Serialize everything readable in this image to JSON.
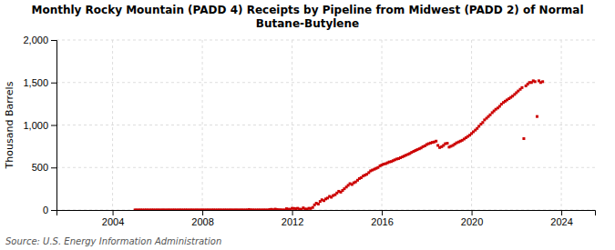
{
  "chart_data": {
    "type": "scatter",
    "title": "Monthly Rocky Mountain (PADD 4) Receipts by Pipeline from Midwest (PADD 2) of Normal\nButane-Butylene",
    "ylabel": "Thousand Barrels",
    "source": "Source: U.S. Energy Information Administration",
    "color": "#cc0000",
    "marker": "square",
    "grid": true,
    "xlim": [
      2001.5,
      2025.5
    ],
    "xticks": [
      2004,
      2008,
      2012,
      2016,
      2020,
      2024
    ],
    "ylim": [
      0,
      2000
    ],
    "yticks": [
      0,
      500,
      {
        "value": 1000,
        "label": "1,000"
      },
      {
        "value": 1500,
        "label": "1,500"
      },
      {
        "value": 2000,
        "label": "2,000"
      }
    ],
    "x": [
      2005.0,
      2005.08,
      2005.17,
      2005.25,
      2005.33,
      2005.42,
      2005.5,
      2005.58,
      2005.67,
      2005.75,
      2005.83,
      2005.92,
      2006.0,
      2006.08,
      2006.17,
      2006.25,
      2006.33,
      2006.42,
      2006.5,
      2006.58,
      2006.67,
      2006.75,
      2006.83,
      2006.92,
      2007.0,
      2007.08,
      2007.17,
      2007.25,
      2007.33,
      2007.42,
      2007.5,
      2007.58,
      2007.67,
      2007.75,
      2007.83,
      2007.92,
      2008.0,
      2008.08,
      2008.17,
      2008.25,
      2008.33,
      2008.42,
      2008.5,
      2008.58,
      2008.67,
      2008.75,
      2008.83,
      2008.92,
      2009.0,
      2009.08,
      2009.17,
      2009.25,
      2009.33,
      2009.42,
      2009.5,
      2009.58,
      2009.67,
      2009.75,
      2009.83,
      2009.92,
      2010.0,
      2010.08,
      2010.17,
      2010.25,
      2010.33,
      2010.42,
      2010.5,
      2010.58,
      2010.67,
      2010.75,
      2010.83,
      2010.92,
      2011.0,
      2011.08,
      2011.17,
      2011.25,
      2011.33,
      2011.42,
      2011.5,
      2011.58,
      2011.67,
      2011.75,
      2011.83,
      2011.92,
      2012.0,
      2012.08,
      2012.17,
      2012.25,
      2012.33,
      2012.42,
      2012.5,
      2012.58,
      2012.67,
      2012.75,
      2012.83,
      2012.92,
      2013.0,
      2013.08,
      2013.17,
      2013.25,
      2013.33,
      2013.42,
      2013.5,
      2013.58,
      2013.67,
      2013.75,
      2013.83,
      2013.92,
      2014.0,
      2014.08,
      2014.17,
      2014.25,
      2014.33,
      2014.42,
      2014.5,
      2014.58,
      2014.67,
      2014.75,
      2014.83,
      2014.92,
      2015.0,
      2015.08,
      2015.17,
      2015.25,
      2015.33,
      2015.42,
      2015.5,
      2015.58,
      2015.67,
      2015.75,
      2015.83,
      2015.92,
      2016.0,
      2016.08,
      2016.17,
      2016.25,
      2016.33,
      2016.42,
      2016.5,
      2016.58,
      2016.67,
      2016.75,
      2016.83,
      2016.92,
      2017.0,
      2017.08,
      2017.17,
      2017.25,
      2017.33,
      2017.42,
      2017.5,
      2017.58,
      2017.67,
      2017.75,
      2017.83,
      2017.92,
      2018.0,
      2018.08,
      2018.17,
      2018.25,
      2018.33,
      2018.42,
      2018.5,
      2018.58,
      2018.67,
      2018.75,
      2018.83,
      2018.92,
      2019.0,
      2019.08,
      2019.17,
      2019.25,
      2019.33,
      2019.42,
      2019.5,
      2019.58,
      2019.67,
      2019.75,
      2019.83,
      2019.92,
      2020.0,
      2020.08,
      2020.17,
      2020.25,
      2020.33,
      2020.42,
      2020.5,
      2020.58,
      2020.67,
      2020.75,
      2020.83,
      2020.92,
      2021.0,
      2021.08,
      2021.17,
      2021.25,
      2021.33,
      2021.42,
      2021.5,
      2021.58,
      2021.67,
      2021.75,
      2021.83,
      2021.92,
      2022.0,
      2022.08,
      2022.17,
      2022.25,
      2022.33,
      2022.42,
      2022.5,
      2022.58,
      2022.67,
      2022.75,
      2022.83,
      2022.92,
      2023.0,
      2023.08,
      2023.17
    ],
    "values": [
      1,
      1,
      1,
      1,
      1,
      1,
      1,
      1,
      1,
      1,
      1,
      1,
      1,
      1,
      1,
      1,
      1,
      1,
      1,
      1,
      1,
      1,
      1,
      1,
      1,
      1,
      1,
      1,
      1,
      1,
      1,
      1,
      1,
      1,
      1,
      1,
      1,
      1,
      1,
      1,
      1,
      1,
      1,
      1,
      1,
      1,
      1,
      1,
      1,
      1,
      1,
      1,
      1,
      1,
      1,
      1,
      1,
      1,
      1,
      1,
      1,
      5,
      2,
      1,
      1,
      1,
      1,
      1,
      1,
      1,
      1,
      1,
      5,
      8,
      3,
      10,
      5,
      3,
      2,
      1,
      1,
      15,
      10,
      8,
      20,
      18,
      15,
      20,
      10,
      8,
      25,
      12,
      10,
      20,
      18,
      30,
      60,
      80,
      70,
      100,
      120,
      110,
      130,
      140,
      160,
      150,
      170,
      180,
      200,
      220,
      210,
      230,
      250,
      270,
      290,
      310,
      300,
      320,
      330,
      350,
      370,
      380,
      400,
      410,
      420,
      440,
      460,
      470,
      480,
      490,
      500,
      520,
      530,
      540,
      545,
      555,
      565,
      570,
      580,
      590,
      600,
      605,
      615,
      625,
      635,
      645,
      655,
      665,
      678,
      690,
      700,
      710,
      720,
      730,
      745,
      755,
      770,
      780,
      788,
      795,
      800,
      810,
      760,
      735,
      745,
      760,
      780,
      785,
      740,
      750,
      760,
      775,
      790,
      800,
      810,
      820,
      835,
      850,
      865,
      880,
      900,
      920,
      940,
      960,
      985,
      1010,
      1030,
      1060,
      1080,
      1100,
      1120,
      1145,
      1165,
      1185,
      1200,
      1220,
      1245,
      1265,
      1280,
      1295,
      1310,
      1325,
      1340,
      1360,
      1380,
      1400,
      1420,
      1440,
      840,
      1460,
      1480,
      1500,
      1500,
      1520,
      1510,
      1100,
      1520,
      1500,
      1510
    ]
  }
}
